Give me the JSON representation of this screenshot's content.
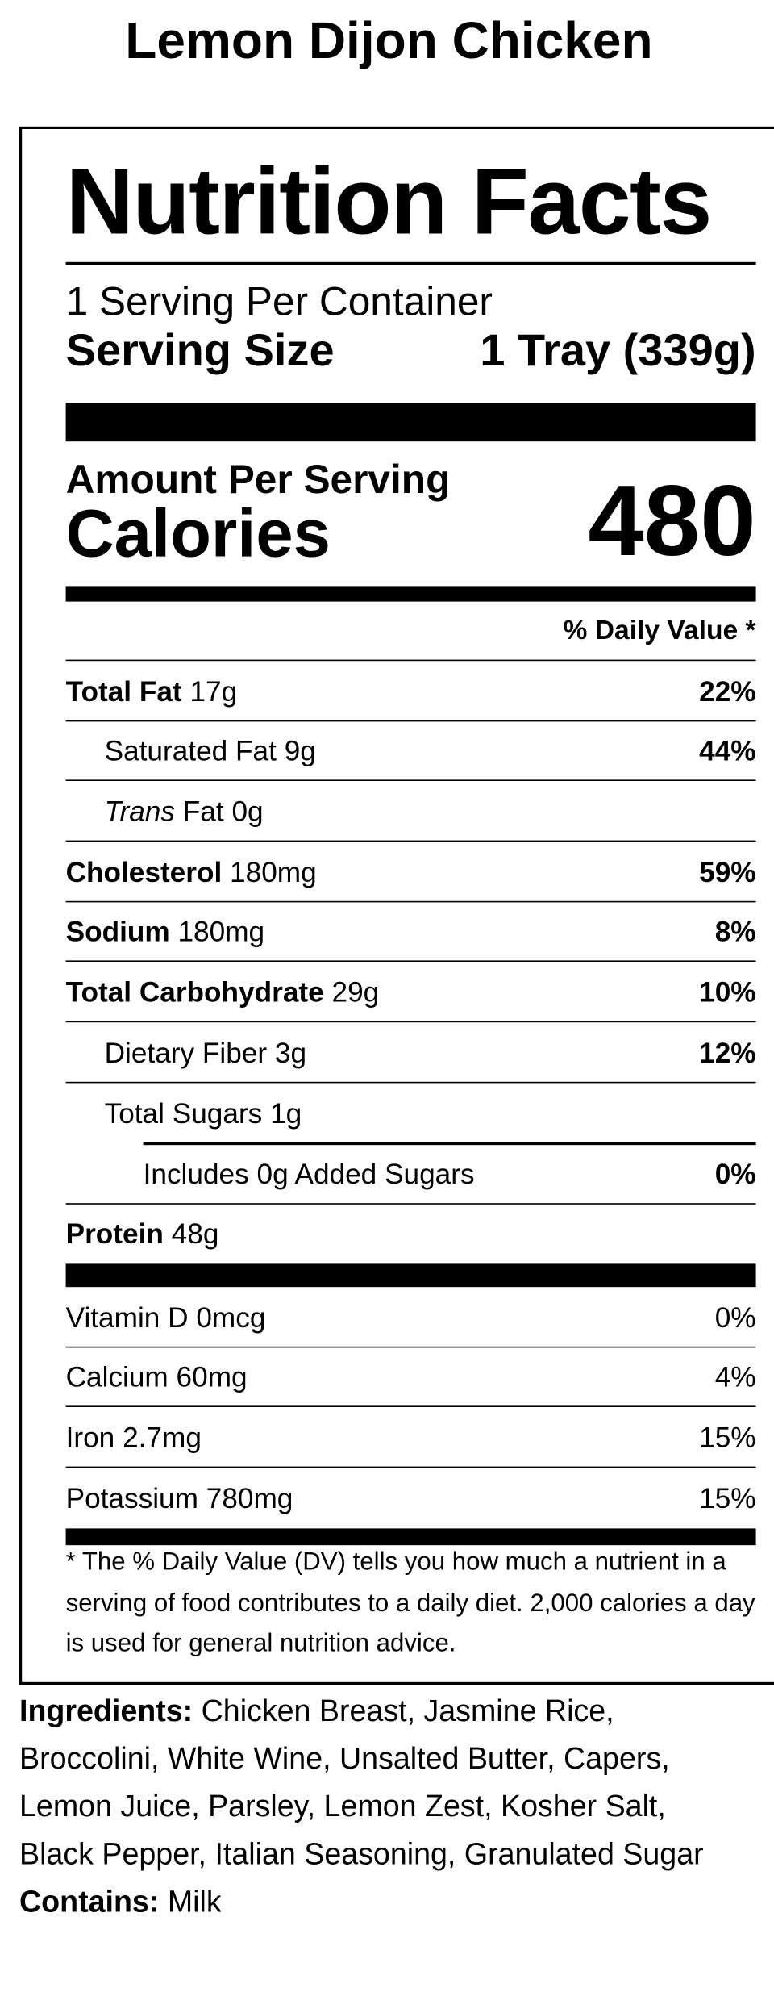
{
  "title": "Lemon Dijon Chicken",
  "label": {
    "heading": "Nutrition Facts",
    "servings": "1 Serving Per Container",
    "serving_size_label": "Serving Size",
    "serving_size": "1 Tray (339g)",
    "amount_per_serving": "Amount Per Serving",
    "calories_label": "Calories",
    "calories": "480",
    "daily_value_header": "% Daily Value *",
    "nutrients": [
      {
        "name": "Total Fat",
        "amount": "17g",
        "dv": "22%"
      },
      {
        "name": "Saturated Fat",
        "amount": "9g",
        "dv": "44%"
      },
      {
        "name_italic": "Trans",
        "name": "Fat",
        "amount": "0g"
      },
      {
        "name": "Cholesterol",
        "amount": "180mg",
        "dv": "59%"
      },
      {
        "name": "Sodium",
        "amount": "180mg",
        "dv": "8%"
      },
      {
        "name": "Total Carbohydrate",
        "amount": "29g",
        "dv": "10%"
      },
      {
        "name": "Dietary Fiber",
        "amount": "3g",
        "dv": "12%"
      },
      {
        "name": "Total Sugars",
        "amount": "1g"
      },
      {
        "name": "Includes 0g Added Sugars",
        "dv": "0%"
      },
      {
        "name": "Protein",
        "amount": "48g"
      }
    ],
    "vitamins": [
      {
        "name": "Vitamin D",
        "amount": "0mcg",
        "dv": "0%"
      },
      {
        "name": "Calcium",
        "amount": "60mg",
        "dv": "4%"
      },
      {
        "name": "Iron",
        "amount": "2.7mg",
        "dv": "15%"
      },
      {
        "name": "Potassium",
        "amount": "780mg",
        "dv": "15%"
      }
    ],
    "footnote": "* The % Daily Value (DV) tells you how much a nutrient in a serving of food contributes to a daily diet. 2,000 calories a day is used for general nutrition advice."
  },
  "ingredients": {
    "label": "Ingredients:",
    "text": "Chicken Breast, Jasmine Rice, Broccolini, White Wine, Unsalted Butter, Capers, Lemon Juice, Parsley, Lemon Zest, Kosher Salt, Black Pepper, Italian Seasoning, Granulated Sugar"
  },
  "contains": {
    "label": "Contains:",
    "text": "Milk"
  }
}
